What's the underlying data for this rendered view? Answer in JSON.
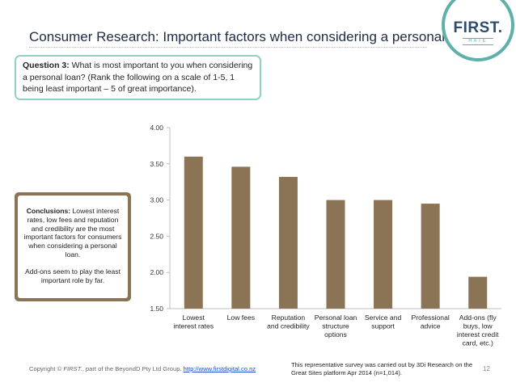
{
  "header": {
    "title": "Consumer Research: Important factors when considering a personal loan?"
  },
  "logo": {
    "word": "FIRST.",
    "sub": "RATE"
  },
  "question": {
    "label": "Question 3:",
    "text": " What is most important to you when considering a personal loan? (Rank the following on a scale of 1-5, 1 being least important – 5 of great importance)."
  },
  "conclusion": {
    "label": "Conclusions:",
    "text": " Lowest interest rates, low fees and reputation and credibility are the most important factors for consumers when considering a personal loan.",
    "text2": "Add-ons seem to play the least important role by far."
  },
  "chart_data": {
    "type": "bar",
    "categories": [
      [
        "Lowest",
        "interest rates"
      ],
      [
        "Low fees"
      ],
      [
        "Reputation",
        "and credibility"
      ],
      [
        "Personal loan",
        "structure",
        "options"
      ],
      [
        "Service and",
        "support"
      ],
      [
        "Professional",
        "advice"
      ],
      [
        "Add-ons (fly",
        "buys, low",
        "interest credit",
        "card, etc.)"
      ]
    ],
    "values": [
      3.6,
      3.46,
      3.32,
      3.0,
      3.0,
      2.95,
      1.94
    ],
    "yticks": [
      "1.50",
      "2.00",
      "2.50",
      "3.00",
      "3.50",
      "4.00"
    ],
    "ylim": [
      1.5,
      4.0
    ],
    "grid": false,
    "colors": {
      "bar": "#8b7355",
      "axis": "#bfbfbf"
    }
  },
  "footer": {
    "copyright_prefix": "Copyright © ",
    "brand": "FIRST.",
    "copyright_suffix": ", part of the BeyondD Pty Ltd Group. ",
    "link": "http://www.firstdigital.co.nz",
    "note": "This representative survey was carried out by 3Di Research on the Great Sites platform Apr 2014 (n=1,014).",
    "page": "12"
  }
}
